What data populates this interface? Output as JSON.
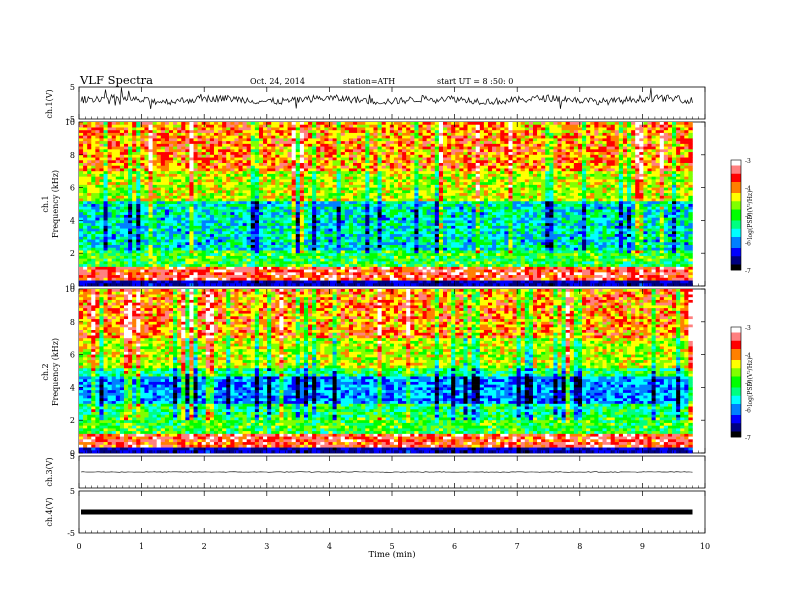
{
  "header": {
    "title": "VLF Spectra",
    "date": "Oct. 24, 2014",
    "station": "station=ATH",
    "start_ut": "start UT =  8 :50: 0"
  },
  "chart_data": {
    "type": "heatmap",
    "xlabel": "Time (min)",
    "xlim": [
      0,
      10
    ],
    "x_ticks": [
      "0",
      "1",
      "2",
      "3",
      "4",
      "5",
      "6",
      "7",
      "8",
      "9",
      "10"
    ],
    "data_end_min": 9.8,
    "panels": [
      {
        "id": "ch1-waveform",
        "type": "line",
        "ylabel": "ch.1(V)",
        "ylim": [
          -5,
          5
        ],
        "y_ticks": [
          "5",
          "-5"
        ],
        "note": "noisy waveform around +1 V",
        "level": 1.0
      },
      {
        "id": "ch1-spectrogram",
        "type": "heatmap",
        "ylabel_top": "ch.1",
        "ylabel": "Frequency (kHz)",
        "ylim": [
          0,
          10
        ],
        "y_ticks": [
          "0",
          "2",
          "4",
          "6",
          "8",
          "10"
        ],
        "colorbar": {
          "label": "log(PSD)(V²/Hz)",
          "range": [
            -7,
            -3
          ],
          "ticks": [
            "-3",
            "-4",
            "-5",
            "-6",
            "-7"
          ]
        }
      },
      {
        "id": "ch2-spectrogram",
        "type": "heatmap",
        "ylabel_top": "ch.2",
        "ylabel": "Frequency (kHz)",
        "ylim": [
          0,
          10
        ],
        "y_ticks": [
          "0",
          "2",
          "4",
          "6",
          "8",
          "10"
        ],
        "colorbar": {
          "label": "log(PSD)(V²/Hz)",
          "range": [
            -7,
            -3
          ],
          "ticks": [
            "-3",
            "-4",
            "-5",
            "-6",
            "-7"
          ]
        }
      },
      {
        "id": "ch3-waveform",
        "type": "line",
        "ylabel": "ch.3(V)",
        "ylim": [
          -5,
          5
        ],
        "y_ticks": [
          "5"
        ],
        "level": 0.0
      },
      {
        "id": "ch4-waveform",
        "type": "line",
        "ylabel": "ch.4(V)",
        "ylim": [
          -5,
          5
        ],
        "y_ticks": [
          "5",
          "-5"
        ],
        "level": 0.0
      }
    ],
    "colormap": [
      "#ffffff",
      "#ff8080",
      "#ff0000",
      "#ff8000",
      "#ffff00",
      "#80ff00",
      "#00ff00",
      "#00ff80",
      "#00ffff",
      "#0080ff",
      "#0000ff",
      "#000080",
      "#000000"
    ]
  }
}
